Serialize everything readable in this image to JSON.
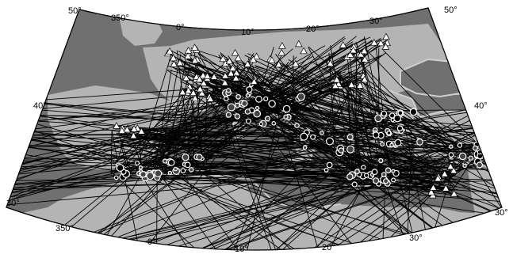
{
  "map": {
    "projection": "conic",
    "colors": {
      "ocean": "#707070",
      "land": "#b4b4b4",
      "paths": "#000000",
      "coast": "#cfcfcf",
      "frame": "#000000"
    },
    "lat_labels": [
      "30°",
      "40°",
      "50°"
    ],
    "lon_labels_top": [
      "350°",
      "0°",
      "10°",
      "20°",
      "30°"
    ],
    "lon_labels_bottom": [
      "350°",
      "0°",
      "10°",
      "20°",
      "30°"
    ],
    "lat_labels_right": [
      "30°",
      "40°",
      "50°"
    ],
    "symbols": {
      "stations": "white triangles",
      "events": "white circles"
    }
  }
}
